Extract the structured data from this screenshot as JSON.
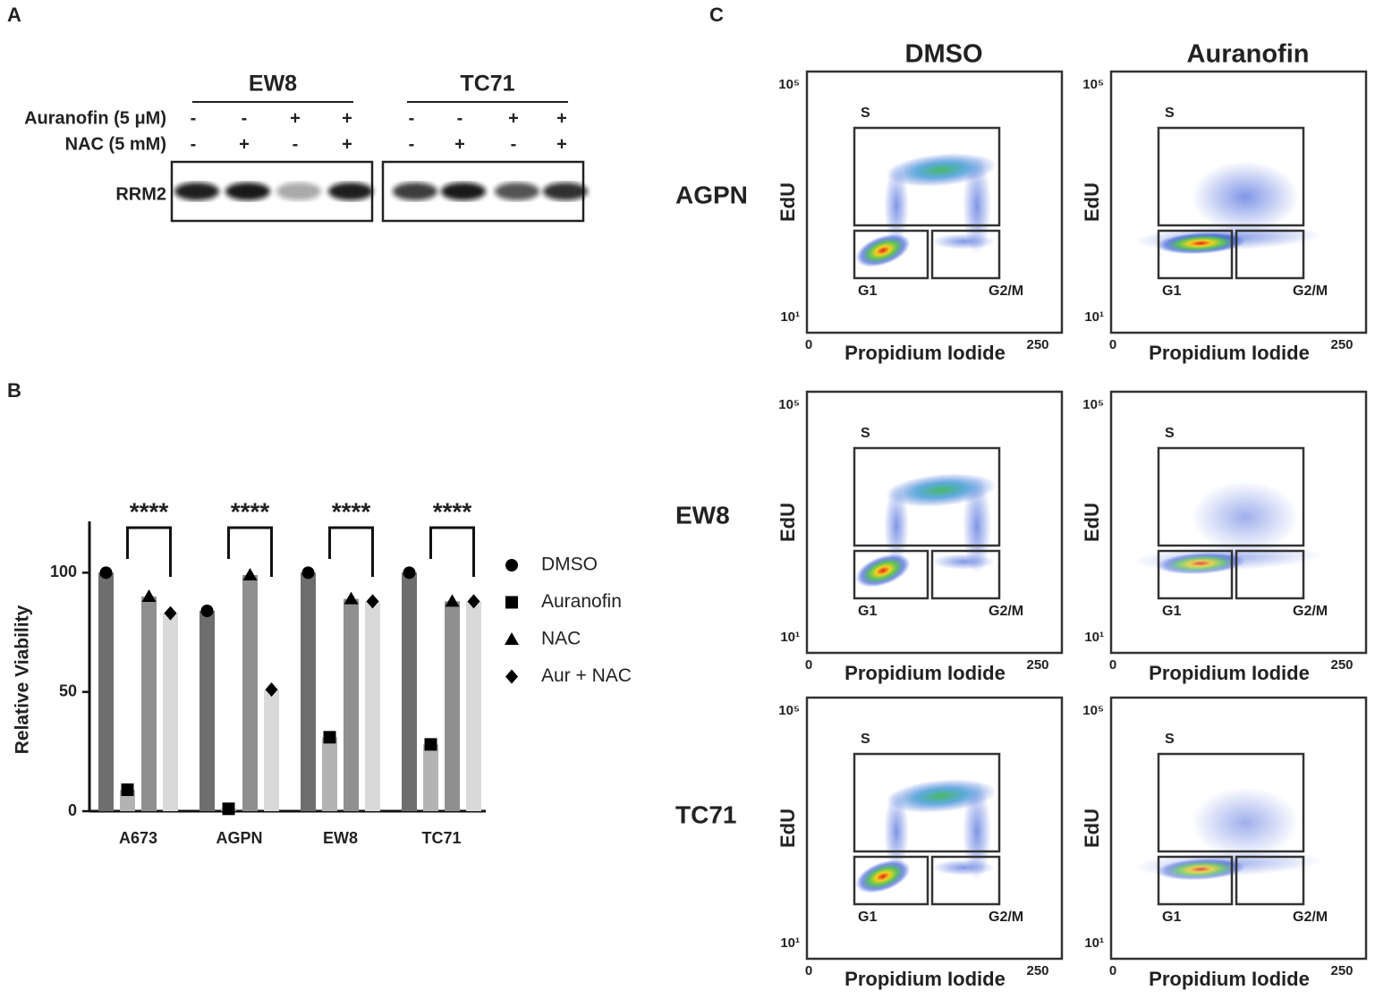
{
  "panel_labels": [
    "A",
    "B",
    "C"
  ],
  "panel_a": {
    "lines": [
      "EW8",
      "TC71"
    ],
    "treatments": [
      {
        "label": "Auranofin (5 μM)",
        "signs": [
          "-",
          "-",
          "+",
          "+",
          "-",
          "-",
          "+",
          "+"
        ]
      },
      {
        "label": "NAC (5 mM)",
        "signs": [
          "-",
          "+",
          "-",
          "+",
          "-",
          "+",
          "-",
          "+"
        ]
      }
    ],
    "band_label": "RRM2"
  },
  "chart_data": {
    "type": "bar",
    "y_label": "Relative Viability",
    "categories": [
      "A673",
      "AGPN",
      "EW8",
      "TC71"
    ],
    "series": [
      {
        "name": "DMSO",
        "color": "#6e6e6e",
        "marker": "circle",
        "values": [
          100,
          84,
          100,
          100
        ]
      },
      {
        "name": "Auranofin",
        "color": "#b3b3b3",
        "marker": "square",
        "values": [
          9,
          1,
          31,
          28
        ]
      },
      {
        "name": "NAC",
        "color": "#8f8f8f",
        "marker": "triangle",
        "values": [
          90,
          99,
          89,
          88
        ]
      },
      {
        "name": "Aur + NAC",
        "color": "#d9d9d9",
        "marker": "diamond",
        "values": [
          83,
          51,
          88,
          88
        ]
      }
    ],
    "annotations": [
      "****",
      "****",
      "****",
      "****"
    ],
    "ylim": [
      0,
      120
    ],
    "yticks": [
      0,
      50,
      100
    ],
    "legend": "right"
  },
  "panel_c": {
    "column_titles": [
      "DMSO",
      "Auranofin"
    ],
    "row_titles": [
      "AGPN",
      "EW8",
      "TC71"
    ],
    "gates": [
      "S",
      "G1",
      "G2/M"
    ],
    "x_label": "Propidium Iodide",
    "y_label": "EdU",
    "x_ticks": [
      "0",
      "250"
    ],
    "y_ticks": [
      "10⁵",
      "10¹"
    ]
  }
}
